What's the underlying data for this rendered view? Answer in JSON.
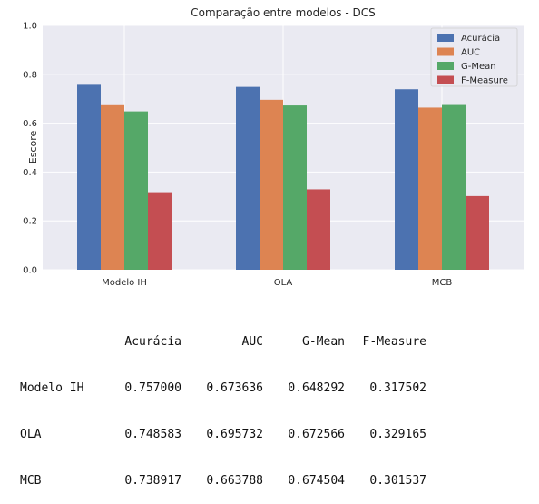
{
  "chart_data": {
    "type": "bar",
    "title": "Comparação entre modelos - DCS",
    "xlabel": "",
    "ylabel": "Escore",
    "categories": [
      "Modelo IH",
      "OLA",
      "MCB"
    ],
    "ylim": [
      0,
      1.0
    ],
    "yticks": [
      "0.0",
      "0.2",
      "0.4",
      "0.6",
      "0.8",
      "1.0"
    ],
    "grid": true,
    "legend_position": "top-right",
    "series": [
      {
        "name": "Acurácia",
        "color": "#4c72b0",
        "values": [
          0.757,
          0.748583,
          0.738917
        ]
      },
      {
        "name": "AUC",
        "color": "#dd8452",
        "values": [
          0.673636,
          0.695732,
          0.663788
        ]
      },
      {
        "name": "G-Mean",
        "color": "#55a868",
        "values": [
          0.648292,
          0.672566,
          0.674504
        ]
      },
      {
        "name": "F-Measure",
        "color": "#c44e52",
        "values": [
          0.317502,
          0.329165,
          0.301537
        ]
      }
    ]
  },
  "table": {
    "columns": [
      "Acurácia",
      "AUC",
      "G-Mean",
      "F-Measure"
    ],
    "rows": [
      {
        "index": "Modelo IH",
        "cells": [
          "0.757000",
          "0.673636",
          "0.648292",
          "0.317502"
        ]
      },
      {
        "index": "OLA",
        "cells": [
          "0.748583",
          "0.695732",
          "0.672566",
          "0.329165"
        ]
      },
      {
        "index": "MCB",
        "cells": [
          "0.738917",
          "0.663788",
          "0.674504",
          "0.301537"
        ]
      }
    ]
  }
}
